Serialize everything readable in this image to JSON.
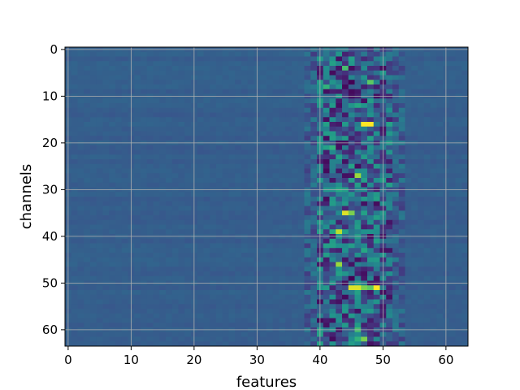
{
  "chart_data": {
    "type": "heatmap",
    "title": "",
    "xlabel": "features",
    "ylabel": "channels",
    "x_range": [
      0,
      63
    ],
    "y_range": [
      0,
      63
    ],
    "y_inverted": true,
    "xticks": [
      0,
      10,
      20,
      30,
      40,
      50,
      60
    ],
    "yticks": [
      0,
      10,
      20,
      30,
      40,
      50,
      60
    ],
    "grid": true,
    "colormap": "viridis",
    "background_color": "#3b5e8c",
    "active_band_features": [
      39,
      53
    ],
    "bright_cells": [
      {
        "feature": 44,
        "channel": 4,
        "value": 0.7
      },
      {
        "feature": 48,
        "channel": 7,
        "value": 0.75
      },
      {
        "feature": 41,
        "channel": 8,
        "value": 0.65
      },
      {
        "feature": 46,
        "channel": 12,
        "value": 0.6
      },
      {
        "feature": 47,
        "channel": 16,
        "value": 1.0
      },
      {
        "feature": 48,
        "channel": 16,
        "value": 1.0
      },
      {
        "feature": 42,
        "channel": 21,
        "value": 0.65
      },
      {
        "feature": 46,
        "channel": 27,
        "value": 0.85
      },
      {
        "feature": 43,
        "channel": 30,
        "value": 0.6
      },
      {
        "feature": 44,
        "channel": 35,
        "value": 0.95
      },
      {
        "feature": 45,
        "channel": 35,
        "value": 0.8
      },
      {
        "feature": 43,
        "channel": 39,
        "value": 0.9
      },
      {
        "feature": 42,
        "channel": 39,
        "value": 0.6
      },
      {
        "feature": 47,
        "channel": 43,
        "value": 0.6
      },
      {
        "feature": 43,
        "channel": 46,
        "value": 0.85
      },
      {
        "feature": 45,
        "channel": 51,
        "value": 0.95
      },
      {
        "feature": 46,
        "channel": 51,
        "value": 0.95
      },
      {
        "feature": 47,
        "channel": 51,
        "value": 0.8
      },
      {
        "feature": 49,
        "channel": 51,
        "value": 1.0
      },
      {
        "feature": 48,
        "channel": 51,
        "value": 0.75
      },
      {
        "feature": 46,
        "channel": 60,
        "value": 0.7
      },
      {
        "feature": 47,
        "channel": 62,
        "value": 0.8
      },
      {
        "feature": 46,
        "channel": 62,
        "value": 0.65
      }
    ],
    "dark_cells": [
      {
        "feature": 45,
        "channel": 7,
        "value": 0.0
      },
      {
        "feature": 44,
        "channel": 24,
        "value": 0.05
      },
      {
        "feature": 45,
        "channel": 49,
        "value": 0.0
      },
      {
        "feature": 47,
        "channel": 33,
        "value": 0.05
      },
      {
        "feature": 42,
        "channel": 58,
        "value": 0.05
      }
    ]
  }
}
